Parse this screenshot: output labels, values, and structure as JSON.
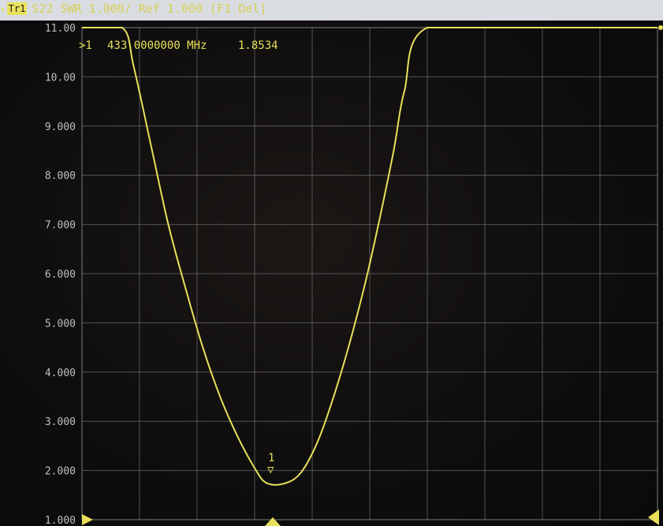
{
  "header": {
    "trace_indicator": "▸",
    "trace_label": "Tr1",
    "measurement": "S22",
    "format": "SWR",
    "scale": "1.000/",
    "ref_label": "Ref 1.000",
    "status": "[F1 Del]"
  },
  "marker": {
    "label": ">1",
    "frequency": "433.0000000 MHz",
    "value": "1.8534",
    "tag_top": "1",
    "tag_bottom": "▽"
  },
  "colors": {
    "trace": "#e8e05a",
    "grid": "#8a8a8a",
    "background": "#0f0e0e",
    "tick_text": "#bfbfbf"
  },
  "chart_data": {
    "type": "line",
    "title": "",
    "xlabel": "",
    "ylabel": "",
    "ylim": [
      1.0,
      11.0
    ],
    "xlim": [
      0,
      10
    ],
    "grid": true,
    "y_tick_labels": [
      "11.00",
      "10.00",
      "9.000",
      "8.000",
      "7.000",
      "6.000",
      "5.000",
      "4.000",
      "3.000",
      "2.000",
      "1.000"
    ],
    "series": [
      {
        "x": [
          0.0,
          0.7,
          0.9,
          1.2,
          1.5,
          1.8,
          2.1,
          2.4,
          2.7,
          3.0,
          3.2,
          3.5,
          3.8,
          4.1,
          4.4,
          4.7,
          5.0,
          5.4,
          5.6,
          6.0,
          8.0,
          10.0
        ],
        "y": [
          11.0,
          11.0,
          10.2,
          8.6,
          7.0,
          5.7,
          4.5,
          3.5,
          2.7,
          2.05,
          1.75,
          1.73,
          1.95,
          2.6,
          3.6,
          4.8,
          6.2,
          8.4,
          9.7,
          11.0,
          11.0,
          11.0
        ]
      }
    ],
    "marker_x": 3.35
  }
}
